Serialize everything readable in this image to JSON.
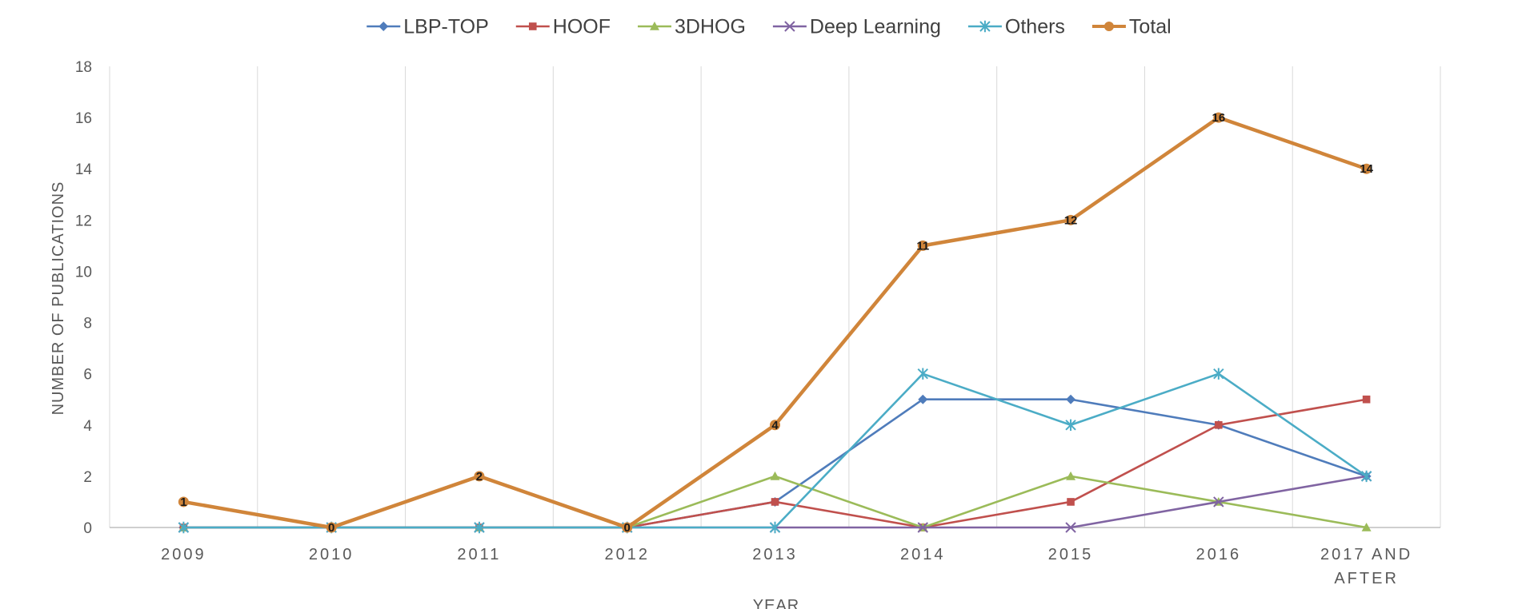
{
  "chart_data": {
    "type": "line",
    "title": "",
    "xlabel": "YEAR",
    "ylabel": "NUMBER OF PUBLICATIONS",
    "categories": [
      "2009",
      "2010",
      "2011",
      "2012",
      "2013",
      "2014",
      "2015",
      "2016",
      "2017 AND AFTER"
    ],
    "ylim": [
      0,
      18
    ],
    "yticks": [
      0,
      2,
      4,
      6,
      8,
      10,
      12,
      14,
      16,
      18
    ],
    "grid": "vertical",
    "legend_position": "top",
    "series": [
      {
        "name": "LBP-TOP",
        "color": "#4f7cbb",
        "marker": "diamond",
        "values": [
          0,
          0,
          0,
          0,
          1,
          5,
          5,
          4,
          2
        ]
      },
      {
        "name": "HOOF",
        "color": "#c0504d",
        "marker": "square",
        "values": [
          0,
          0,
          0,
          0,
          1,
          0,
          1,
          4,
          5
        ]
      },
      {
        "name": "3DHOG",
        "color": "#9bbb59",
        "marker": "triangle",
        "values": [
          0,
          0,
          0,
          0,
          2,
          0,
          2,
          1,
          0
        ]
      },
      {
        "name": "Deep Learning",
        "color": "#8064a2",
        "marker": "x",
        "values": [
          0,
          0,
          0,
          0,
          0,
          0,
          0,
          1,
          2
        ]
      },
      {
        "name": "Others",
        "color": "#4bacc6",
        "marker": "asterisk",
        "values": [
          0,
          0,
          0,
          0,
          0,
          6,
          4,
          6,
          2
        ]
      },
      {
        "name": "Total",
        "color": "#d0853a",
        "marker": "circle",
        "values": [
          1,
          0,
          2,
          0,
          4,
          11,
          12,
          16,
          14
        ],
        "data_labels": true
      }
    ]
  }
}
